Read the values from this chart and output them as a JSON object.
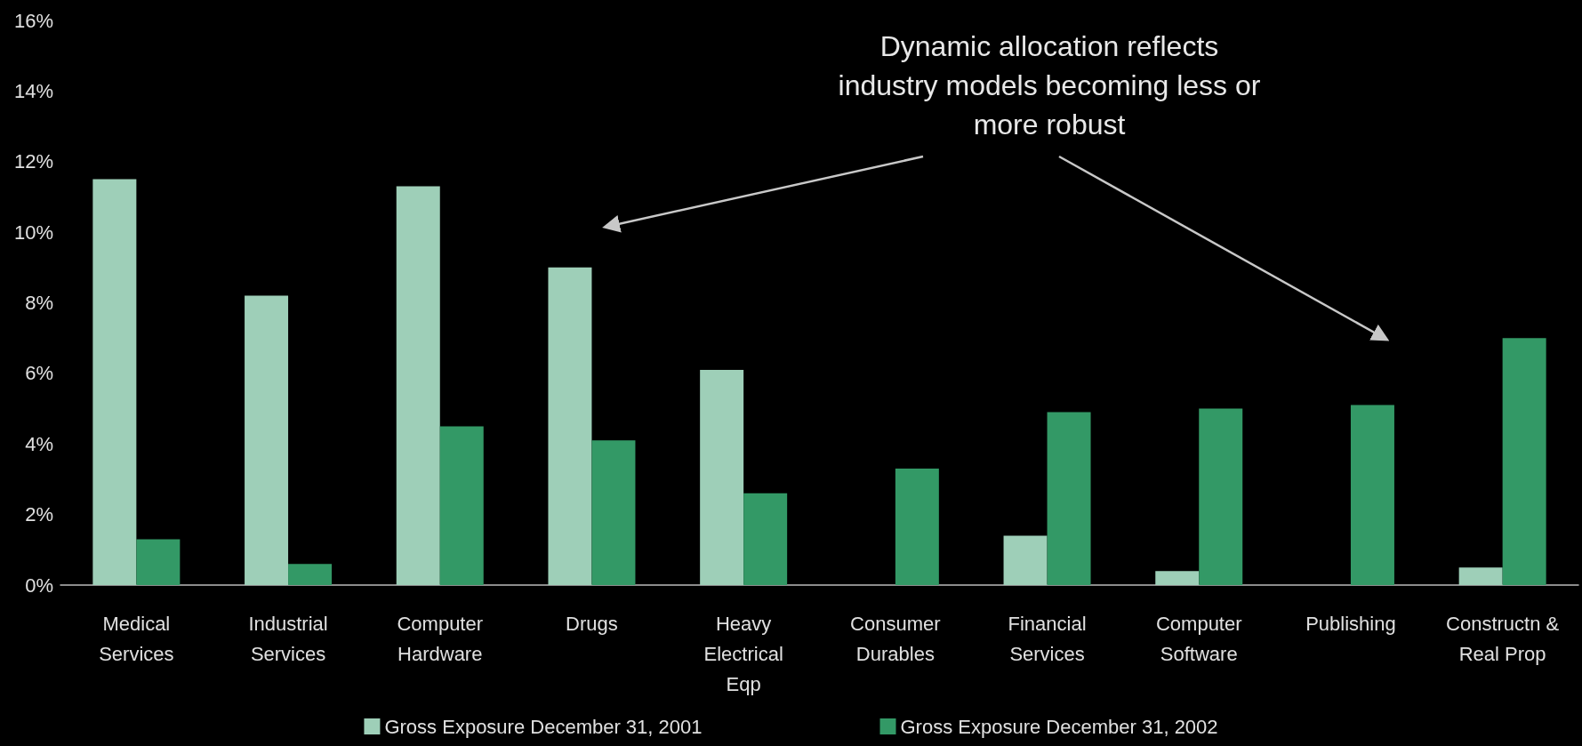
{
  "chart_data": {
    "type": "bar",
    "categories": [
      "Medical\nServices",
      "Industrial\nServices",
      "Computer\nHardware",
      "Drugs",
      "Heavy\nElectrical\nEqp",
      "Consumer\nDurables",
      "Financial\nServices",
      "Computer\nSoftware",
      "Publishing",
      "Constructn &\nReal Prop"
    ],
    "series": [
      {
        "name": "Gross Exposure December 31, 2001",
        "color": "#9ecfb8",
        "values": [
          11.5,
          8.2,
          11.3,
          9.0,
          6.1,
          null,
          1.4,
          0.4,
          0,
          0.5
        ]
      },
      {
        "name": "Gross Exposure December 31, 2002",
        "color": "#339966",
        "values": [
          1.3,
          0.6,
          4.5,
          4.1,
          2.6,
          3.3,
          4.9,
          5.0,
          5.1,
          7.0
        ]
      }
    ],
    "ylim": [
      0,
      16
    ],
    "yticks": [
      {
        "value": 0,
        "label": "0%"
      },
      {
        "value": 2,
        "label": "2%"
      },
      {
        "value": 4,
        "label": "4%"
      },
      {
        "value": 6,
        "label": "6%"
      },
      {
        "value": 8,
        "label": "8%"
      },
      {
        "value": 10,
        "label": "10%"
      },
      {
        "value": 12,
        "label": "12%"
      },
      {
        "value": 14,
        "label": "14%"
      },
      {
        "value": 16,
        "label": "16%"
      }
    ],
    "annotations": [
      "Dynamic allocation reflects industry models becoming less or more robust"
    ],
    "grid": false,
    "legend": "bottom"
  }
}
